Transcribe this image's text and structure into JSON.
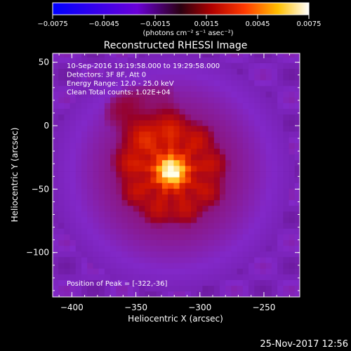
{
  "chart_data": {
    "type": "heatmap",
    "title": "Reconstructed RHESSI Image",
    "xlabel": "Heliocentric X (arcsec)",
    "ylabel": "Heliocentric Y (arcsec)",
    "xlim": [
      -415,
      -222
    ],
    "ylim": [
      -135,
      57
    ],
    "xticks": [
      -400,
      -350,
      -300,
      -250
    ],
    "xtick_labels": [
      "−400",
      "−350",
      "−300",
      "−250"
    ],
    "yticks": [
      50,
      0,
      -50,
      -100
    ],
    "ytick_labels": [
      "50",
      "0",
      "−50",
      "−100"
    ],
    "colorbar": {
      "range": [
        -0.0075,
        0.0075
      ],
      "ticks": [
        -0.0075,
        -0.0045,
        -0.0015,
        0.0015,
        0.0045,
        0.0075
      ],
      "tick_labels": [
        "−0.0075",
        "−0.0045",
        "−0.0015",
        "0.0015",
        "0.0045",
        "0.0075"
      ],
      "unit_label": "(photons cm⁻² s⁻¹ asec⁻²)"
    },
    "annotations": [
      "10-Sep-2016 19:19:58.000 to 19:29:58.000",
      "Detectors: 3F 8F, Att 0",
      "Energy Range: 12.0 - 25.0 keV",
      "Clean    Total counts: 1.02E+04"
    ],
    "peak_label": "Position of Peak = [-322,-36]",
    "peak": {
      "x": -322,
      "y": -36
    },
    "grid": false,
    "colormap": "rhessi-hot (blue-purple-red-orange-yellow-white)"
  },
  "footer": {
    "date": "25-Nov-2017 12:56"
  }
}
